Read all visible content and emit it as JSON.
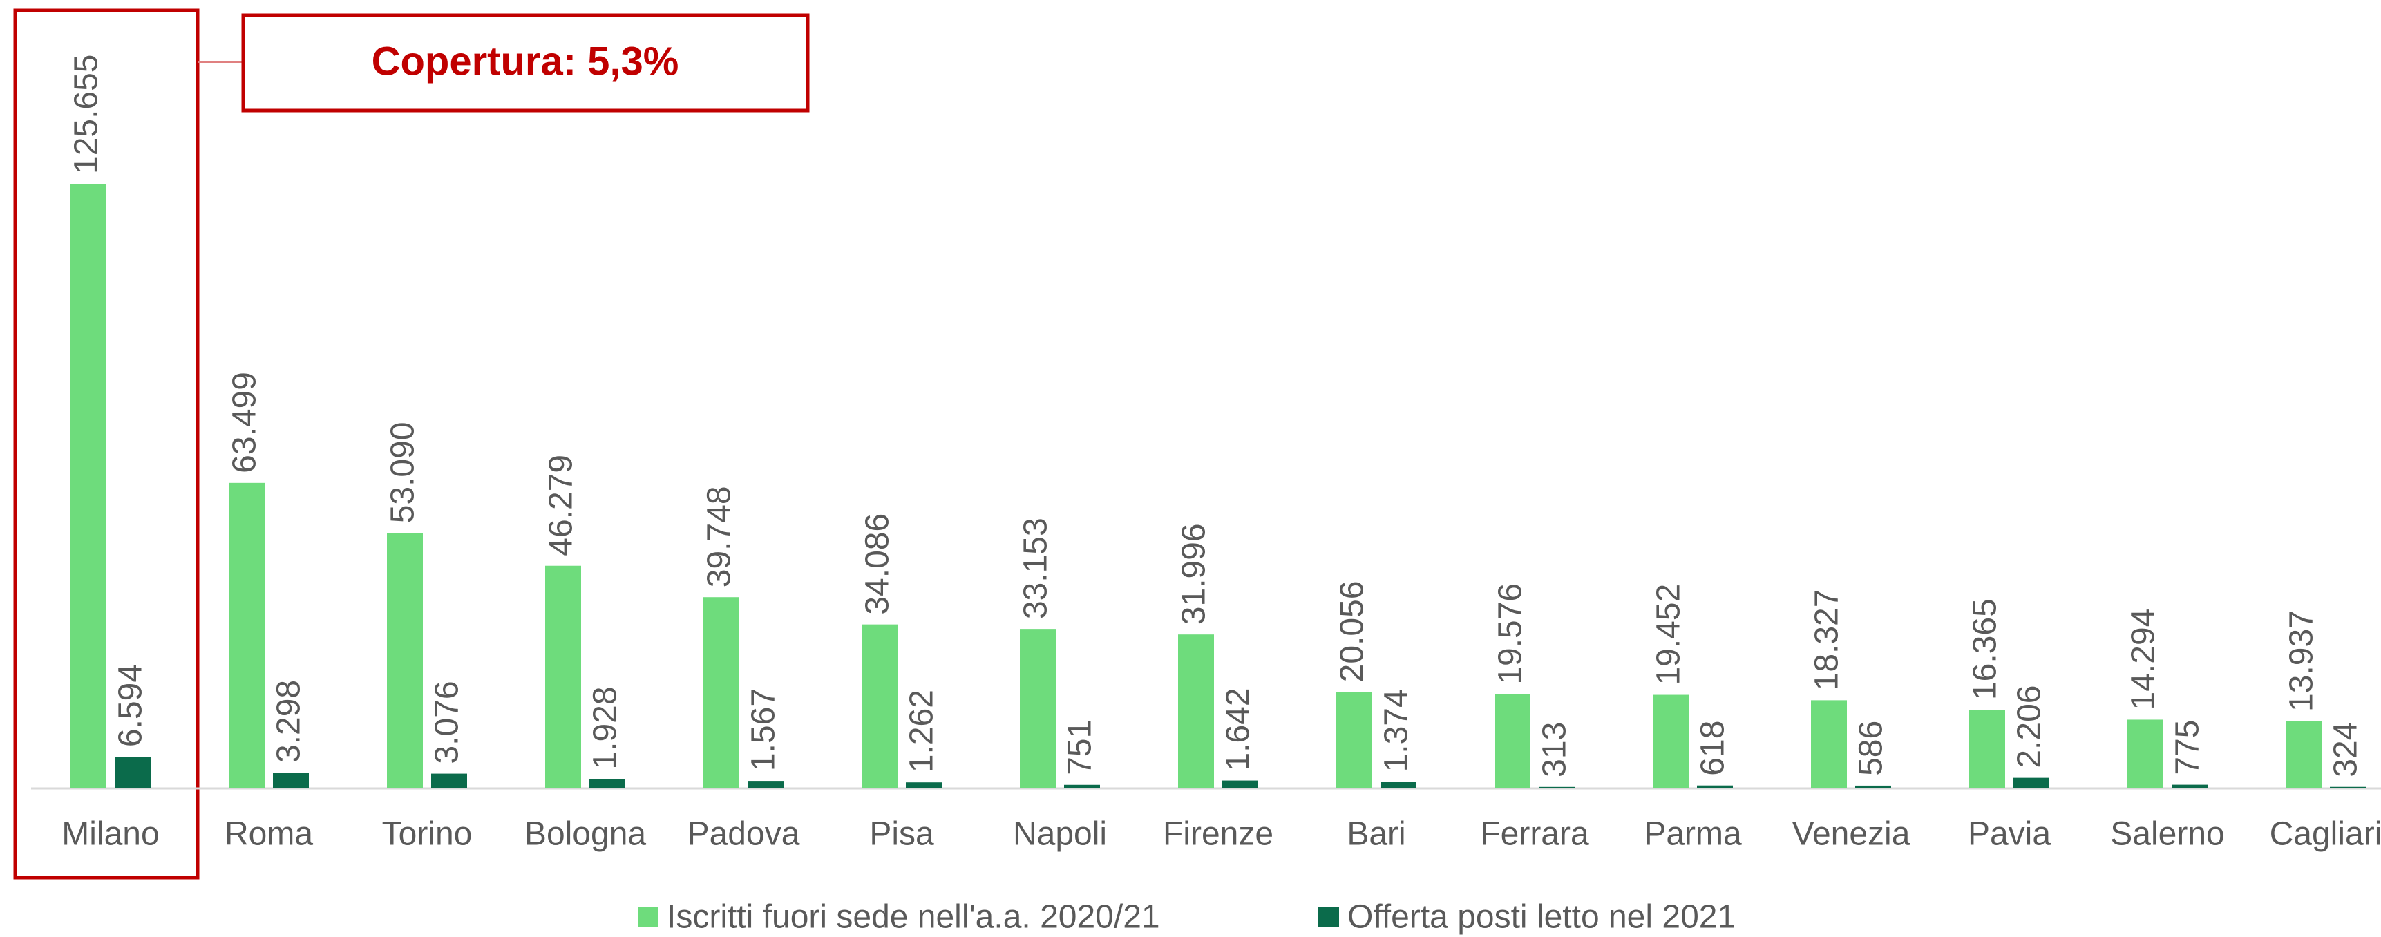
{
  "chart_data": {
    "type": "bar",
    "categories": [
      "Milano",
      "Roma",
      "Torino",
      "Bologna",
      "Padova",
      "Pisa",
      "Napoli",
      "Firenze",
      "Bari",
      "Ferrara",
      "Parma",
      "Venezia",
      "Pavia",
      "Salerno",
      "Cagliari"
    ],
    "series": [
      {
        "name": "Iscritti fuori sede nell'a.a. 2020/21",
        "color": "#6edc7c",
        "values": [
          125655,
          63499,
          53090,
          46279,
          39748,
          34086,
          33153,
          31996,
          20056,
          19576,
          19452,
          18327,
          16365,
          14294,
          13937
        ],
        "value_labels": [
          "125.655",
          "63.499",
          "53.090",
          "46.279",
          "39.748",
          "34.086",
          "33.153",
          "31.996",
          "20.056",
          "19.576",
          "19.452",
          "18.327",
          "16.365",
          "14.294",
          "13.937"
        ]
      },
      {
        "name": "Offerta posti letto nel 2021",
        "color": "#0b6b4b",
        "values": [
          6594,
          3298,
          3076,
          1928,
          1567,
          1262,
          751,
          1642,
          1374,
          313,
          618,
          586,
          2206,
          775,
          324
        ],
        "value_labels": [
          "6.594",
          "3.298",
          "3.076",
          "1.928",
          "1.567",
          "1.262",
          "751",
          "1.642",
          "1.374",
          "313",
          "618",
          "586",
          "2.206",
          "775",
          "324"
        ]
      }
    ],
    "annotation": "Copertura: 5,3%",
    "legend": "bottom"
  }
}
